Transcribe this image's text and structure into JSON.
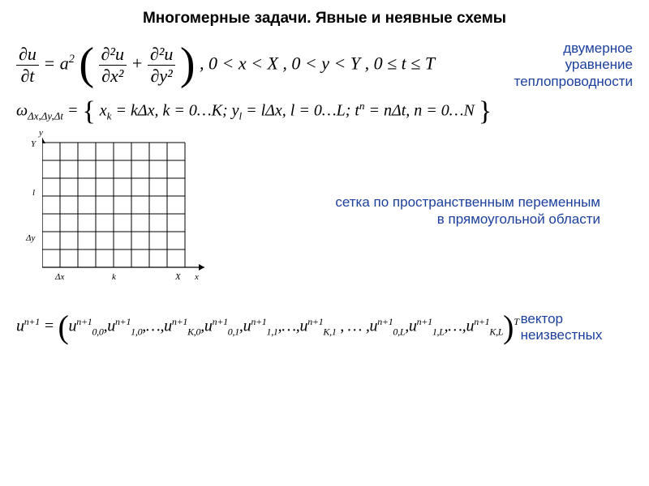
{
  "title": "Многомерные задачи. Явные и неявные схемы",
  "colors": {
    "text": "#000000",
    "note_blue": "#1b3f9c",
    "bg": "#ffffff",
    "grid_line": "#000000"
  },
  "note1": {
    "line1": "двумерное",
    "line2": "уравнение",
    "line3": "теплопроводности"
  },
  "eq1": {
    "lhs_num": "∂u",
    "lhs_den": "∂t",
    "eq": " = ",
    "a2": "a",
    "sup2": "2",
    "f1_num": "∂²u",
    "f1_den": "∂x²",
    "plus": " + ",
    "f2_num": "∂²u",
    "f2_den": "∂y²",
    "cond": ",   0 < x < X ,   0 < y < Y ,   0 ≤ t ≤ T"
  },
  "eq2": {
    "omega": "ω",
    "omega_sub": "Δx,Δy,Δt",
    "eq": " = ",
    "body": "x",
    "xk_sub": "k",
    "eq_k": " = kΔx, k = 0…K;  y",
    "yl_sub": "l",
    "eq_l": " = lΔx, l = 0…L;  t",
    "tn_sup": "n",
    "eq_n": " = nΔt, n = 0…N"
  },
  "grid": {
    "rows": 7,
    "cols": 8,
    "cell": 22,
    "y_axis": "y",
    "y_top": "Y",
    "y_mid": "l",
    "y_dy": "Δy",
    "x_dx": "Δx",
    "x_mid": "k",
    "x_right": "X",
    "x_axis": "x"
  },
  "note2": {
    "line1": "сетка по пространственным переменным",
    "line2": "в прямоугольной области"
  },
  "eq3": {
    "u": "u",
    "sup_n1": "n+1",
    "eq": " = ",
    "terms": [
      {
        "sub": "0,0"
      },
      {
        "sub": "1,0"
      },
      {
        "dots": true
      },
      {
        "sub": "K,0"
      },
      {
        "sub": "0,1"
      },
      {
        "sub": "1,1"
      },
      {
        "dots": true
      },
      {
        "sub": "K,1"
      },
      {
        "bigdots": true
      },
      {
        "sub": "0,L"
      },
      {
        "sub": "1,L"
      },
      {
        "dots": true
      },
      {
        "sub": "K,L"
      }
    ],
    "T": "T"
  },
  "note3": {
    "line1": "вектор",
    "line2": "неизвестных"
  }
}
